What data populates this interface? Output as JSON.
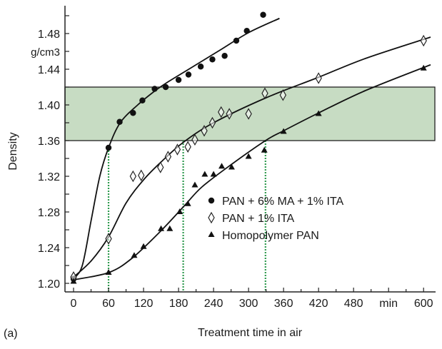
{
  "chart_data": {
    "type": "scatter",
    "panel_label": "(a)",
    "xlabel": "Treatment time in air",
    "ylabel": "Density",
    "y_unit": "g/cm3",
    "x_unit_label": "min",
    "xlim": [
      -15,
      620
    ],
    "ylim": [
      1.191,
      1.51
    ],
    "x_ticks": [
      0,
      60,
      120,
      180,
      240,
      300,
      360,
      420,
      480,
      540,
      600
    ],
    "x_tick_labels": [
      "0",
      "60",
      "120",
      "180",
      "240",
      "300",
      "360",
      "420",
      "480",
      "min",
      "600"
    ],
    "y_ticks": [
      1.2,
      1.24,
      1.28,
      1.32,
      1.36,
      1.4,
      1.44,
      1.48
    ],
    "y_tick_labels": [
      "1.20",
      "1.24",
      "1.28",
      "1.32",
      "1.36",
      "1.40",
      "1.44",
      "1.48"
    ],
    "shaded_band": {
      "y_range": [
        1.36,
        1.42
      ],
      "color": "#c7dcc3"
    },
    "guide_lines": [
      {
        "x": 60,
        "y_top": 1.352
      },
      {
        "x": 188,
        "y_top": 1.36
      },
      {
        "x": 329,
        "y_top": 1.36
      }
    ],
    "guide_color": "#2e9a4e",
    "legend_position": "center-right",
    "series": [
      {
        "name": "PAN + 6% MA + 1% ITA",
        "marker": "circle",
        "points": [
          [
            0,
            1.205
          ],
          [
            60,
            1.352
          ],
          [
            79,
            1.381
          ],
          [
            102,
            1.391
          ],
          [
            118,
            1.405
          ],
          [
            139,
            1.418
          ],
          [
            158,
            1.42
          ],
          [
            180,
            1.428
          ],
          [
            197,
            1.434
          ],
          [
            218,
            1.443
          ],
          [
            238,
            1.451
          ],
          [
            259,
            1.455
          ],
          [
            279,
            1.472
          ],
          [
            297,
            1.483
          ],
          [
            325,
            1.501
          ]
        ],
        "fit": [
          [
            0,
            1.205
          ],
          [
            15,
            1.22
          ],
          [
            30,
            1.27
          ],
          [
            45,
            1.32
          ],
          [
            60,
            1.352
          ],
          [
            80,
            1.38
          ],
          [
            110,
            1.4
          ],
          [
            140,
            1.416
          ],
          [
            160,
            1.425
          ],
          [
            200,
            1.441
          ],
          [
            250,
            1.461
          ],
          [
            300,
            1.481
          ],
          [
            353,
            1.497
          ]
        ]
      },
      {
        "name": "PAN + 1% ITA",
        "marker": "diamond",
        "points": [
          [
            0,
            1.207
          ],
          [
            60,
            1.25
          ],
          [
            102,
            1.32
          ],
          [
            116,
            1.321
          ],
          [
            149,
            1.33
          ],
          [
            162,
            1.342
          ],
          [
            178,
            1.35
          ],
          [
            196,
            1.353
          ],
          [
            208,
            1.361
          ],
          [
            224,
            1.371
          ],
          [
            238,
            1.38
          ],
          [
            253,
            1.392
          ],
          [
            267,
            1.39
          ],
          [
            300,
            1.39
          ],
          [
            328,
            1.413
          ],
          [
            359,
            1.411
          ],
          [
            420,
            1.43
          ],
          [
            600,
            1.472
          ]
        ],
        "fit": [
          [
            0,
            1.207
          ],
          [
            30,
            1.225
          ],
          [
            60,
            1.252
          ],
          [
            90,
            1.29
          ],
          [
            120,
            1.316
          ],
          [
            150,
            1.336
          ],
          [
            188,
            1.358
          ],
          [
            240,
            1.38
          ],
          [
            330,
            1.408
          ],
          [
            420,
            1.431
          ],
          [
            500,
            1.452
          ],
          [
            612,
            1.476
          ]
        ]
      },
      {
        "name": "Homopolymer PAN",
        "marker": "triangle",
        "points": [
          [
            0,
            1.202
          ],
          [
            60,
            1.212
          ],
          [
            104,
            1.231
          ],
          [
            120,
            1.241
          ],
          [
            150,
            1.261
          ],
          [
            165,
            1.261
          ],
          [
            182,
            1.28
          ],
          [
            196,
            1.289
          ],
          [
            208,
            1.31
          ],
          [
            225,
            1.322
          ],
          [
            240,
            1.322
          ],
          [
            254,
            1.331
          ],
          [
            271,
            1.33
          ],
          [
            300,
            1.342
          ],
          [
            327,
            1.349
          ],
          [
            360,
            1.37
          ],
          [
            420,
            1.39
          ],
          [
            600,
            1.441
          ]
        ],
        "fit": [
          [
            0,
            1.204
          ],
          [
            60,
            1.212
          ],
          [
            100,
            1.228
          ],
          [
            150,
            1.259
          ],
          [
            190,
            1.287
          ],
          [
            220,
            1.308
          ],
          [
            270,
            1.333
          ],
          [
            329,
            1.36
          ],
          [
            360,
            1.371
          ],
          [
            420,
            1.391
          ],
          [
            500,
            1.416
          ],
          [
            612,
            1.445
          ]
        ]
      }
    ]
  }
}
